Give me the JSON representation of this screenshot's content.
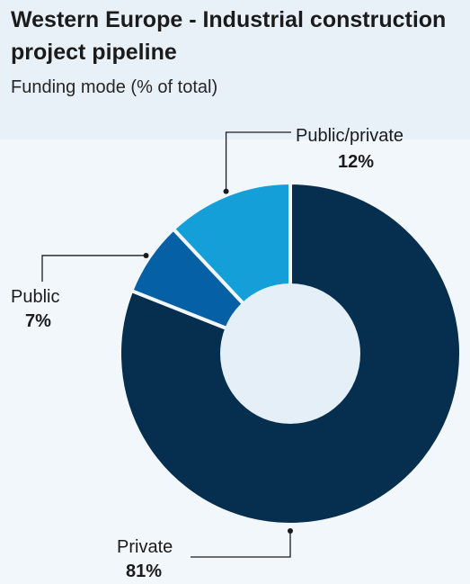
{
  "chart_data": {
    "type": "pie",
    "title": "Western Europe - Industrial construction project pipeline",
    "subtitle": "Funding mode (% of total)",
    "slices": [
      {
        "label": "Private",
        "value": 81,
        "value_label": "81%",
        "color": "#062e4e"
      },
      {
        "label": "Public",
        "value": 7,
        "value_label": "7%",
        "color": "#0560a6"
      },
      {
        "label": "Public/private",
        "value": 12,
        "value_label": "12%",
        "color": "#149fd8"
      }
    ],
    "center_color": "#e5eff7",
    "background_color": "#f2f7fb",
    "header_color": "#e8f1f8"
  }
}
